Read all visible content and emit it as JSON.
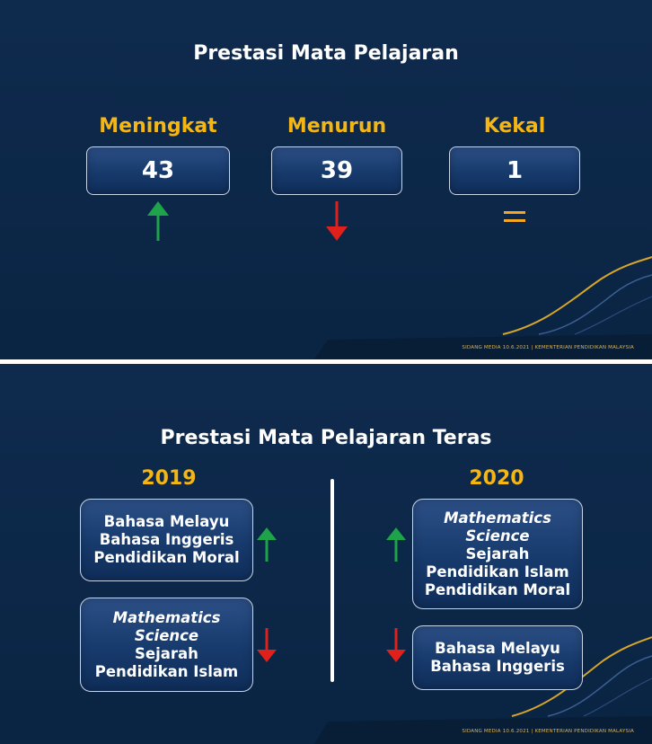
{
  "slide1": {
    "title": "Prestasi Mata Pelajaran",
    "stats": [
      {
        "label": "Meningkat",
        "value": "43",
        "indicator": "arrow-up-icon",
        "color": "#1ea34a"
      },
      {
        "label": "Menurun",
        "value": "39",
        "indicator": "arrow-down-icon",
        "color": "#e0201b"
      },
      {
        "label": "Kekal",
        "value": "1",
        "indicator": "equals-icon",
        "color": "#f5a623"
      }
    ],
    "footer": "SIDANG MEDIA 10.6.2021 | KEMENTERIAN PENDIDIKAN MALAYSIA"
  },
  "slide2": {
    "title": "Prestasi Mata Pelajaran Teras",
    "years": [
      "2019",
      "2020"
    ],
    "y2019": {
      "increased": [
        "Bahasa Melayu",
        "Bahasa Inggeris",
        "Pendidikan Moral"
      ],
      "decreased": [
        "Mathematics",
        "Science",
        "Sejarah",
        "Pendidikan Islam"
      ]
    },
    "y2020": {
      "increased": [
        "Mathematics",
        "Science",
        "Sejarah",
        "Pendidikan Islam",
        "Pendidikan Moral"
      ],
      "decreased": [
        "Bahasa Melayu",
        "Bahasa Inggeris"
      ]
    },
    "footer": "SIDANG MEDIA 10.6.2021 | KEMENTERIAN PENDIDIKAN MALAYSIA"
  },
  "colors": {
    "background": "#0c2747",
    "accent_yellow": "#f5b614",
    "up_green": "#1ea34a",
    "down_red": "#e0201b",
    "equal_orange": "#f5a623"
  }
}
